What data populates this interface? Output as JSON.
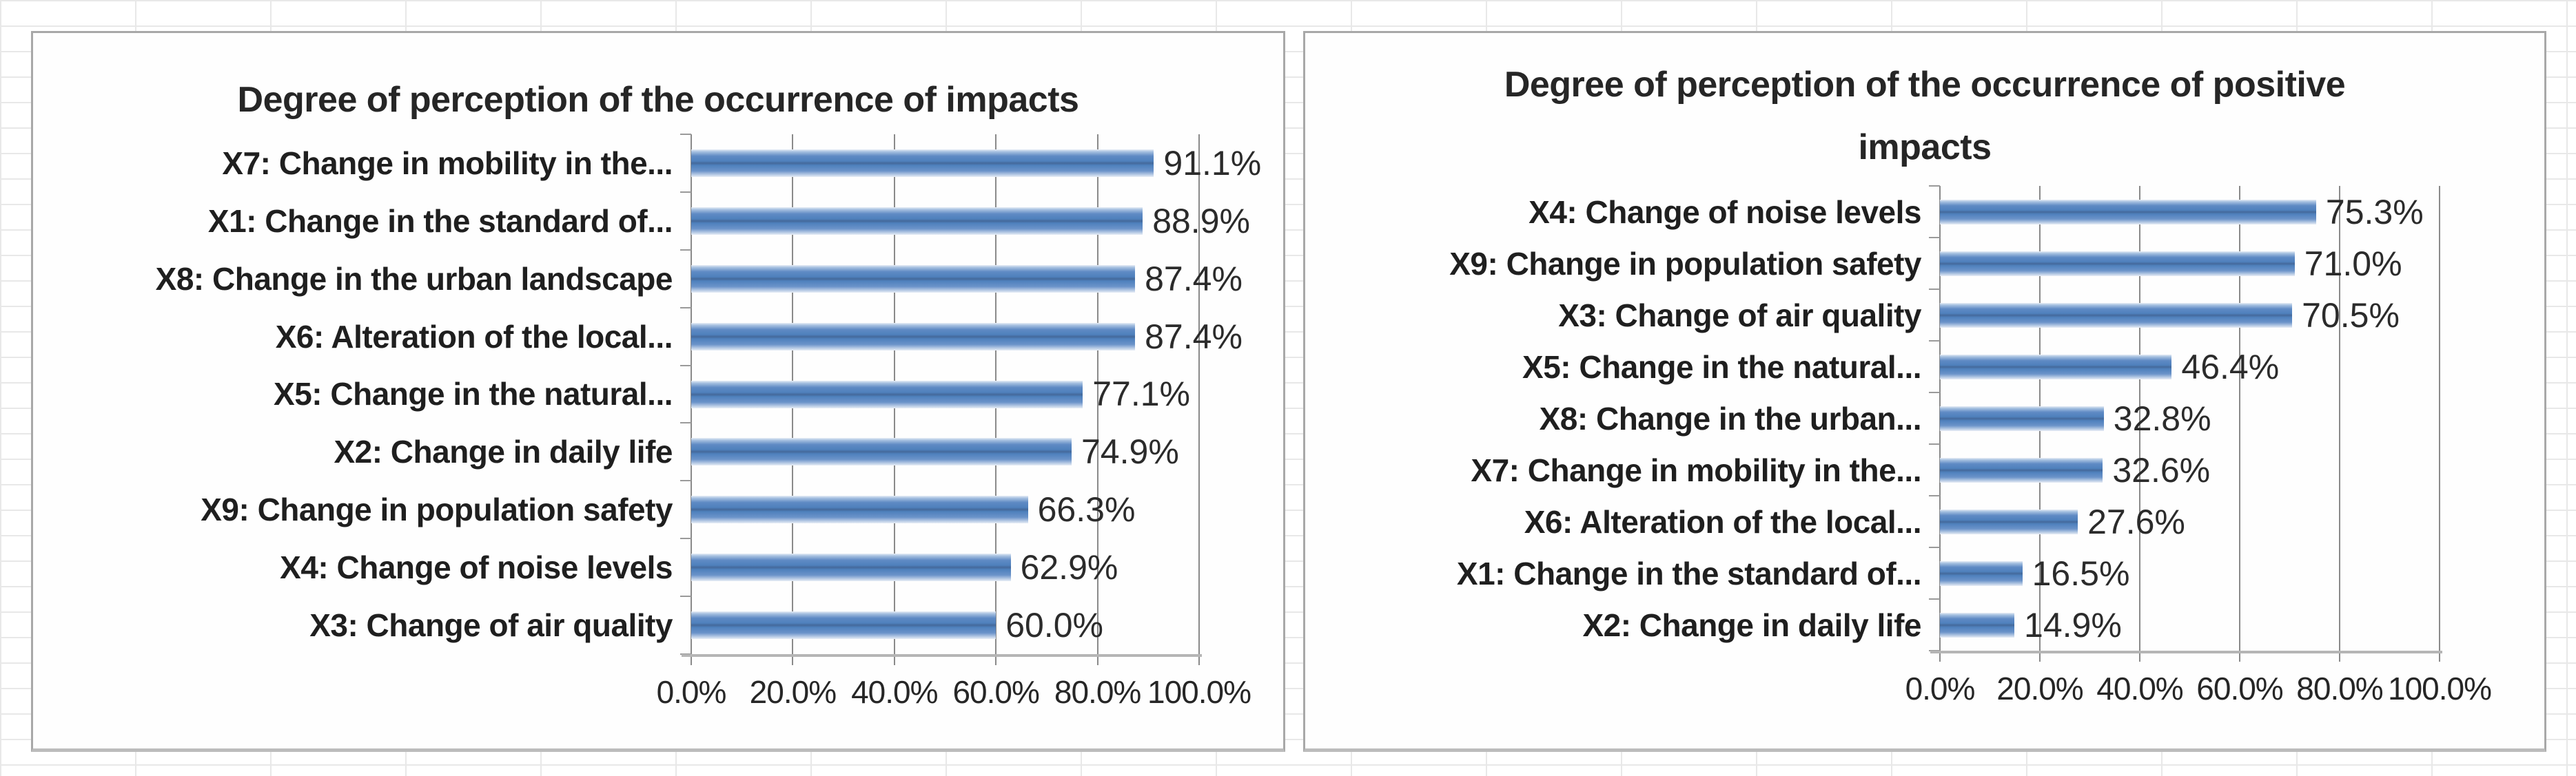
{
  "page": {
    "background_color": "#ffffff",
    "spreadsheet_grid_color": "#e8e8e8",
    "panel_border_color": "#a8a8a8"
  },
  "colors": {
    "bar_main": "#4f81bd",
    "bar_center_dark": "#44699b",
    "bar_edge_light": "#b9cce5",
    "plot_gridline": "#8a8a8a",
    "axis_line": "#b5b5b5",
    "text": "#262626"
  },
  "chart_data": [
    {
      "type": "bar",
      "orientation": "horizontal",
      "title": "Degree of perception of the occurrence of impacts",
      "categories": [
        "X7: Change in mobility in the...",
        "X1: Change in the standard of...",
        "X8: Change in the urban landscape",
        "X6: Alteration of the local...",
        "X5: Change in the natural...",
        "X2: Change in daily life",
        "X9: Change in population safety",
        "X4: Change of noise levels",
        "X3: Change of air quality"
      ],
      "values": [
        91.1,
        88.9,
        87.4,
        87.4,
        77.1,
        74.9,
        66.3,
        62.9,
        60.0
      ],
      "value_labels": [
        "91.1%",
        "88.9%",
        "87.4%",
        "87.4%",
        "77.1%",
        "74.9%",
        "66.3%",
        "62.9%",
        "60.0%"
      ],
      "x_ticks": [
        "0.0%",
        "20.0%",
        "40.0%",
        "60.0%",
        "80.0%",
        "100.0%"
      ],
      "xlim": [
        0,
        100
      ],
      "grid": true,
      "legend": false,
      "bar_color": "#4f81bd"
    },
    {
      "type": "bar",
      "orientation": "horizontal",
      "title": "Degree of perception of the occurrence of positive impacts",
      "categories": [
        "X4: Change of noise levels",
        "X9: Change in population safety",
        "X3: Change of air quality",
        "X5: Change in the natural...",
        "X8: Change in the urban...",
        "X7: Change in mobility in the...",
        "X6: Alteration of the local...",
        "X1: Change in the standard of...",
        "X2: Change in daily life"
      ],
      "values": [
        75.3,
        71.0,
        70.5,
        46.4,
        32.8,
        32.6,
        27.6,
        16.5,
        14.9
      ],
      "value_labels": [
        "75.3%",
        "71.0%",
        "70.5%",
        "46.4%",
        "32.8%",
        "32.6%",
        "27.6%",
        "16.5%",
        "14.9%"
      ],
      "x_ticks": [
        "0.0%",
        "20.0%",
        "40.0%",
        "60.0%",
        "80.0%",
        "100.0%"
      ],
      "xlim": [
        0,
        100
      ],
      "grid": true,
      "legend": false,
      "bar_color": "#4f81bd"
    }
  ]
}
